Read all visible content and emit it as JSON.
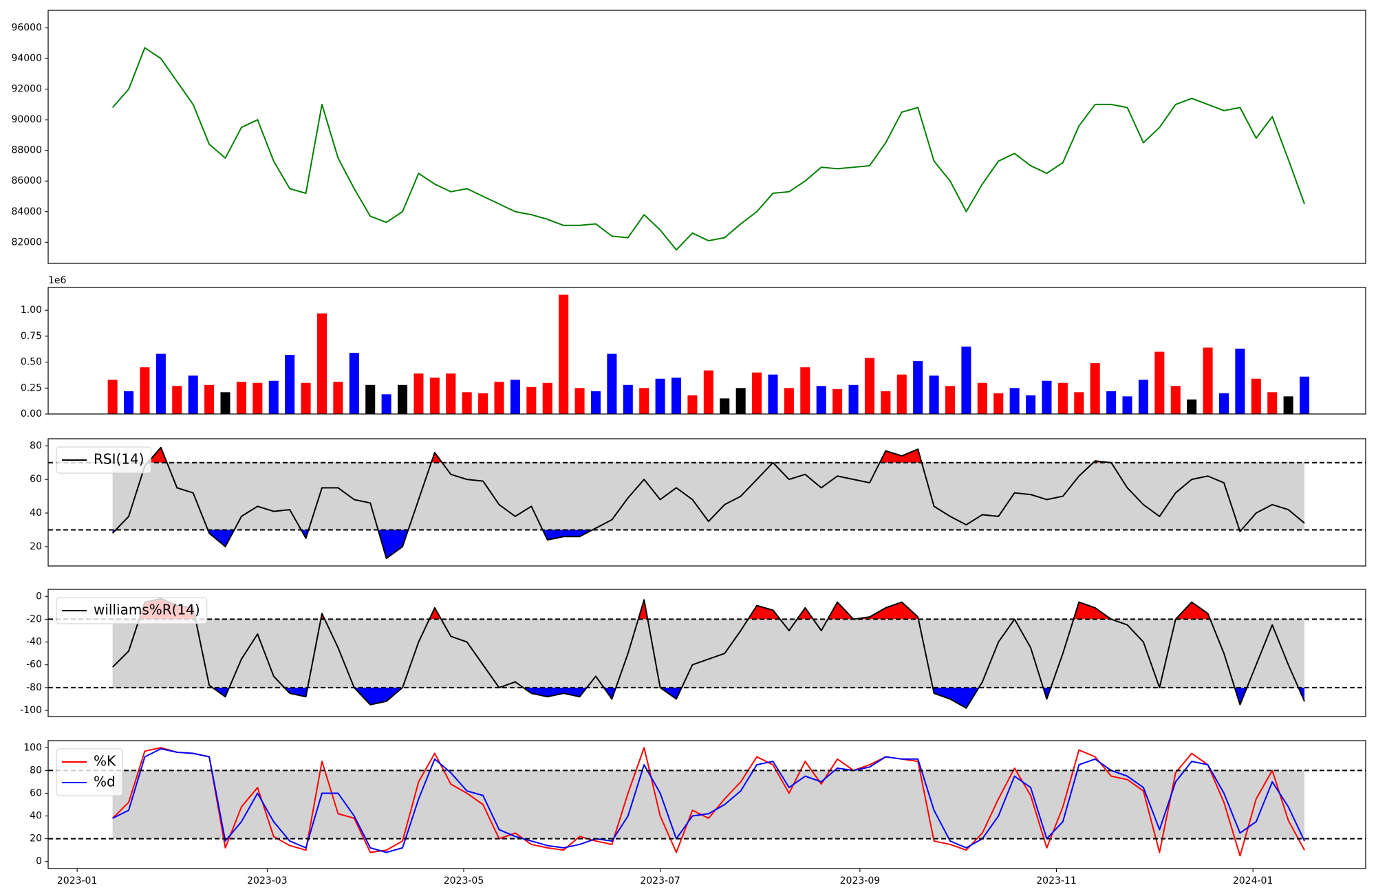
{
  "chart_data": [
    {
      "type": "line",
      "color": "green",
      "values": [
        90800,
        92000,
        94700,
        94000,
        92500,
        91000,
        88400,
        87500,
        89500,
        90000,
        87300,
        85500,
        85200,
        91000,
        87500,
        85500,
        83700,
        83300,
        84000,
        86500,
        85800,
        85300,
        85500,
        85000,
        84500,
        84000,
        83800,
        83500,
        83100,
        83100,
        83200,
        82400,
        82300,
        83800,
        82800,
        81500,
        82600,
        82100,
        82300,
        83200,
        84000,
        85200,
        85300,
        86000,
        86900,
        86800,
        86900,
        87000,
        88500,
        90500,
        90800,
        87300,
        86000,
        84000,
        85800,
        87300,
        87800,
        87000,
        86500,
        87200,
        89600,
        91000,
        91000,
        90800,
        88500,
        89500,
        91000,
        91400,
        91000,
        90600,
        90800,
        88800,
        90200,
        87400,
        84500
      ],
      "ylim": [
        80620,
        97150
      ],
      "yticks": [
        82000,
        84000,
        86000,
        88000,
        90000,
        92000,
        94000,
        96000
      ]
    },
    {
      "type": "bar",
      "y_offset_label": "1e6",
      "values": [
        330000,
        220000,
        450000,
        580000,
        270000,
        370000,
        280000,
        210000,
        310000,
        300000,
        320000,
        570000,
        300000,
        970000,
        310000,
        590000,
        280000,
        190000,
        280000,
        390000,
        350000,
        390000,
        210000,
        200000,
        310000,
        330000,
        260000,
        300000,
        1150000,
        250000,
        220000,
        580000,
        280000,
        250000,
        340000,
        350000,
        180000,
        420000,
        150000,
        250000,
        400000,
        380000,
        250000,
        450000,
        270000,
        240000,
        280000,
        540000,
        220000,
        380000,
        510000,
        370000,
        270000,
        650000,
        300000,
        200000,
        250000,
        180000,
        320000,
        300000,
        210000,
        490000,
        220000,
        170000,
        330000,
        600000,
        270000,
        140000,
        640000,
        200000,
        630000,
        340000,
        210000,
        170000,
        360000
      ],
      "bar_colors": [
        "red",
        "blue",
        "red",
        "blue",
        "red",
        "blue",
        "red",
        "black",
        "red",
        "red",
        "blue",
        "blue",
        "red",
        "red",
        "red",
        "blue",
        "black",
        "blue",
        "black",
        "red",
        "red",
        "red",
        "red",
        "red",
        "red",
        "blue",
        "red",
        "red",
        "red",
        "red",
        "blue",
        "blue",
        "blue",
        "red",
        "blue",
        "blue",
        "red",
        "red",
        "black",
        "black",
        "red",
        "blue",
        "red",
        "red",
        "blue",
        "red",
        "blue",
        "red",
        "red",
        "red",
        "blue",
        "blue",
        "red",
        "blue",
        "red",
        "red",
        "blue",
        "blue",
        "blue",
        "red",
        "red",
        "red",
        "blue",
        "blue",
        "blue",
        "red",
        "red",
        "black",
        "red",
        "blue",
        "blue",
        "red",
        "red",
        "black",
        "blue"
      ],
      "ylim": [
        0,
        1220000
      ],
      "yticks": [
        {
          "value": 0,
          "label": "0.00"
        },
        {
          "value": 250000,
          "label": "0.25"
        },
        {
          "value": 500000,
          "label": "0.50"
        },
        {
          "value": 750000,
          "label": "0.75"
        },
        {
          "value": 1000000,
          "label": "1.00"
        }
      ]
    },
    {
      "type": "line",
      "legend": "upper left",
      "band": [
        30,
        70
      ],
      "band_color": "#d3d3d3",
      "above_color": "red",
      "below_color": "blue",
      "series": [
        {
          "name": "RSI(14)",
          "color": "black",
          "values": [
            28,
            38,
            68,
            79,
            55,
            52,
            28,
            20,
            38,
            44,
            41,
            42,
            25,
            55,
            55,
            48,
            46,
            13,
            20,
            48,
            76,
            63,
            60,
            59,
            45,
            38,
            44,
            24,
            26,
            26,
            31,
            36,
            49,
            60,
            48,
            55,
            48,
            35,
            45,
            50,
            60,
            70,
            60,
            63,
            55,
            62,
            60,
            58,
            77,
            74,
            78,
            44,
            38,
            33,
            39,
            38,
            52,
            51,
            48,
            50,
            62,
            71,
            70,
            55,
            45,
            38,
            52,
            60,
            62,
            58,
            29,
            40,
            45,
            42,
            34
          ]
        }
      ],
      "ylim": [
        8.5,
        84.2
      ],
      "yticks": [
        20,
        40,
        60,
        80
      ]
    },
    {
      "type": "line",
      "legend": "upper left",
      "band": [
        -80,
        -20
      ],
      "band_color": "#d3d3d3",
      "above_color": "red",
      "below_color": "blue",
      "series": [
        {
          "name": "williams%R(14)",
          "color": "black",
          "values": [
            -62,
            -48,
            -5,
            -2,
            -8,
            -10,
            -78,
            -88,
            -55,
            -33,
            -70,
            -85,
            -88,
            -15,
            -45,
            -80,
            -95,
            -92,
            -80,
            -40,
            -10,
            -35,
            -40,
            -60,
            -80,
            -75,
            -85,
            -88,
            -85,
            -88,
            -70,
            -90,
            -50,
            -3,
            -80,
            -90,
            -60,
            -55,
            -50,
            -30,
            -8,
            -12,
            -30,
            -10,
            -30,
            -5,
            -20,
            -18,
            -10,
            -5,
            -18,
            -85,
            -90,
            -98,
            -75,
            -40,
            -20,
            -45,
            -90,
            -50,
            -5,
            -10,
            -20,
            -25,
            -40,
            -80,
            -20,
            -5,
            -15,
            -50,
            -95,
            -60,
            -25,
            -60,
            -92
          ]
        }
      ],
      "ylim": [
        -105.4,
        6.2
      ],
      "yticks": [
        -100,
        -80,
        -60,
        -40,
        -20,
        0
      ]
    },
    {
      "type": "line",
      "legend": "upper left",
      "band": [
        20,
        80
      ],
      "band_color": "#d3d3d3",
      "x": [
        19369,
        19374,
        19379,
        19384,
        19389,
        19394,
        19399,
        19404,
        19409,
        19414,
        19419,
        19424,
        19429,
        19434,
        19439,
        19444,
        19449,
        19454,
        19459,
        19464,
        19469,
        19474,
        19479,
        19484,
        19489,
        19494,
        19499,
        19504,
        19509,
        19514,
        19519,
        19524,
        19529,
        19534,
        19539,
        19544,
        19549,
        19554,
        19559,
        19564,
        19569,
        19574,
        19579,
        19584,
        19589,
        19594,
        19599,
        19604,
        19609,
        19614,
        19619,
        19624,
        19629,
        19634,
        19639,
        19644,
        19649,
        19654,
        19659,
        19664,
        19669,
        19674,
        19679,
        19684,
        19689,
        19694,
        19699,
        19704,
        19709,
        19714,
        19719,
        19724,
        19729,
        19734,
        19739
      ],
      "xlim": [
        19349,
        19758
      ],
      "xticks": [
        {
          "value": 19358,
          "label": "2023-01"
        },
        {
          "value": 19417,
          "label": "2023-03"
        },
        {
          "value": 19478,
          "label": "2023-05"
        },
        {
          "value": 19539,
          "label": "2023-07"
        },
        {
          "value": 19601,
          "label": "2023-09"
        },
        {
          "value": 19662,
          "label": "2023-11"
        },
        {
          "value": 19723,
          "label": "2024-01"
        }
      ],
      "series": [
        {
          "name": "%K",
          "color": "red",
          "values": [
            38,
            52,
            97,
            100,
            96,
            95,
            92,
            12,
            48,
            65,
            22,
            14,
            10,
            88,
            42,
            38,
            8,
            10,
            18,
            70,
            95,
            68,
            60,
            50,
            20,
            25,
            15,
            12,
            10,
            22,
            18,
            15,
            60,
            100,
            40,
            8,
            45,
            38,
            55,
            70,
            92,
            85,
            60,
            88,
            68,
            90,
            80,
            85,
            92,
            90,
            88,
            18,
            15,
            10,
            25,
            55,
            82,
            58,
            12,
            48,
            98,
            92,
            75,
            72,
            62,
            8,
            78,
            95,
            85,
            52,
            5,
            55,
            80,
            36,
            10
          ]
        },
        {
          "name": "%d",
          "color": "blue",
          "values": [
            38,
            45,
            92,
            99,
            96,
            95,
            92,
            18,
            35,
            60,
            35,
            18,
            12,
            60,
            60,
            40,
            12,
            8,
            12,
            55,
            90,
            78,
            62,
            58,
            28,
            22,
            18,
            14,
            12,
            15,
            20,
            18,
            40,
            85,
            60,
            20,
            40,
            42,
            50,
            62,
            85,
            88,
            65,
            75,
            70,
            82,
            80,
            83,
            92,
            90,
            90,
            45,
            18,
            12,
            20,
            40,
            75,
            65,
            20,
            35,
            85,
            90,
            80,
            75,
            65,
            28,
            70,
            88,
            85,
            60,
            25,
            35,
            70,
            48,
            18
          ]
        }
      ],
      "ylim": [
        -6.2,
        106.2
      ],
      "yticks": [
        0,
        20,
        40,
        60,
        80,
        100
      ]
    }
  ]
}
